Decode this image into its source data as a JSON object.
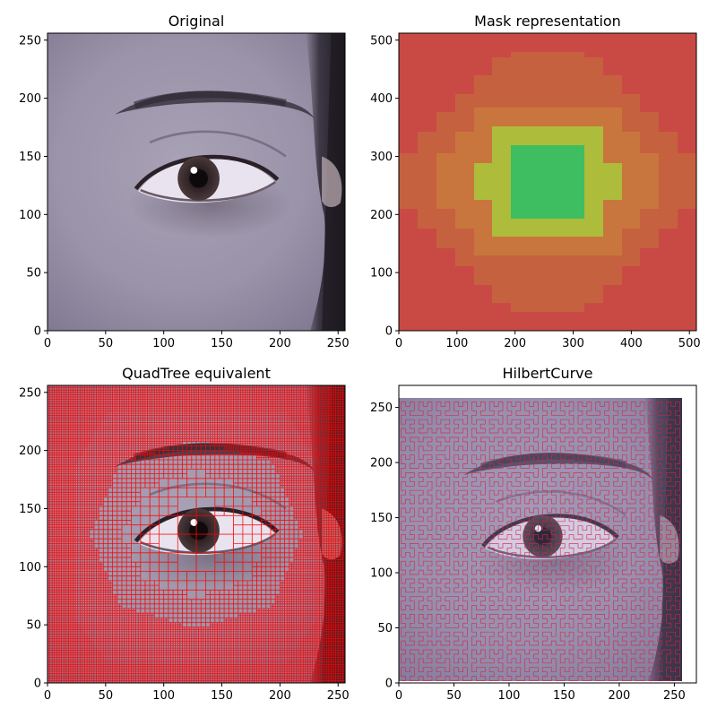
{
  "chart_data": [
    {
      "type": "image",
      "title": "Original",
      "xlim": [
        0,
        256
      ],
      "ylim": [
        0,
        256
      ],
      "xticks": [
        0,
        50,
        100,
        150,
        200,
        250
      ],
      "yticks": [
        0,
        50,
        100,
        150,
        200,
        250
      ],
      "content": "photo of an eye"
    },
    {
      "type": "heatmap",
      "title": "Mask representation",
      "xlim": [
        0,
        512
      ],
      "ylim": [
        0,
        512
      ],
      "xticks": [
        0,
        100,
        200,
        300,
        400,
        500
      ],
      "yticks": [
        0,
        100,
        200,
        300,
        400,
        500
      ],
      "regions": [
        {
          "level": 0,
          "color": "#c94a44",
          "extent": [
            0,
            512,
            0,
            512
          ]
        },
        {
          "level": 1,
          "color": "#c6613f",
          "extent": [
            0,
            512,
            32,
            480
          ]
        },
        {
          "level": 2,
          "color": "#c8763d",
          "extent": [
            64,
            448,
            128,
            384
          ]
        },
        {
          "level": 3,
          "color": "#adbc3a",
          "extent": [
            128,
            384,
            192,
            352
          ]
        },
        {
          "level": 4,
          "color": "#3fbd61",
          "extent": [
            192,
            320,
            192,
            320
          ]
        }
      ]
    },
    {
      "type": "image",
      "title": "QuadTree equivalent",
      "xlim": [
        0,
        256
      ],
      "ylim": [
        0,
        256
      ],
      "xticks": [
        0,
        50,
        100,
        150,
        200,
        250
      ],
      "yticks": [
        0,
        50,
        100,
        150,
        200,
        250
      ],
      "overlay": "quadtree grid",
      "overlay_color": "#ff0000"
    },
    {
      "type": "image",
      "title": "HilbertCurve",
      "xlim": [
        0,
        270
      ],
      "ylim": [
        0,
        270
      ],
      "xticks": [
        0,
        50,
        100,
        150,
        200,
        250
      ],
      "yticks": [
        0,
        50,
        100,
        150,
        200,
        250
      ],
      "overlay": "hilbert curve",
      "overlay_color": "#e0203a"
    }
  ]
}
